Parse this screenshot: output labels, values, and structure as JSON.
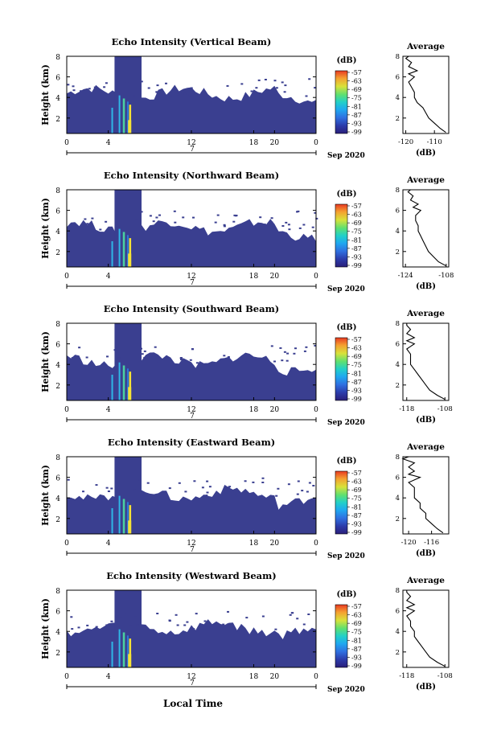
{
  "figure": {
    "xlabel": "Local Time",
    "date_label": "Sep 2020",
    "ylabel": "Height (km)",
    "colorbar_unit": "(dB)",
    "colorbar_ticks": [
      "-57",
      "-63",
      "-69",
      "-75",
      "-81",
      "-87",
      "-93",
      "-99"
    ],
    "avg_title": "Average",
    "avg_xlabel": "(dB)",
    "x_ticks": [
      "0",
      "4",
      "12",
      "18",
      "20",
      "0"
    ],
    "date_tick": "7",
    "y_ticks": [
      "2",
      "4",
      "6",
      "8"
    ]
  },
  "chart_data": [
    {
      "type": "heatmap",
      "title": "Echo Intensity (Vertical Beam)",
      "x_range": [
        0,
        24
      ],
      "y_range": [
        0.5,
        8
      ],
      "color_range_db": [
        -99,
        -57
      ],
      "avg_profile": {
        "x_ticks": [
          "-120",
          "-110"
        ],
        "xlim": [
          -121,
          -105
        ],
        "height_km": [
          0.6,
          1.0,
          1.5,
          2.0,
          2.5,
          3.0,
          3.5,
          4.0,
          4.5,
          5.0,
          5.5,
          6.0,
          6.3,
          6.6,
          7.0,
          7.4,
          7.8,
          8.0
        ],
        "db": [
          -106,
          -108,
          -110,
          -112,
          -113,
          -114,
          -116,
          -117,
          -117,
          -118,
          -119,
          -117,
          -119,
          -116,
          -119,
          -118,
          -120,
          -119
        ]
      }
    },
    {
      "type": "heatmap",
      "title": "Echo Intensity (Northward Beam)",
      "x_range": [
        0,
        24
      ],
      "y_range": [
        0.5,
        8
      ],
      "color_range_db": [
        -99,
        -57
      ],
      "avg_profile": {
        "x_ticks": [
          "-124",
          "-108"
        ],
        "xlim": [
          -125,
          -107
        ],
        "height_km": [
          0.6,
          1.0,
          1.5,
          2.0,
          2.5,
          3.0,
          3.5,
          4.0,
          4.5,
          5.0,
          5.5,
          6.0,
          6.3,
          6.6,
          7.0,
          7.4,
          7.8,
          8.0
        ],
        "db": [
          -108,
          -111,
          -113,
          -115,
          -116,
          -117,
          -118,
          -119,
          -119,
          -120,
          -120,
          -118,
          -121,
          -119,
          -122,
          -121,
          -123,
          -122
        ]
      }
    },
    {
      "type": "heatmap",
      "title": "Echo Intensity (Southward Beam)",
      "x_range": [
        0,
        24
      ],
      "y_range": [
        0.5,
        8
      ],
      "color_range_db": [
        -99,
        -57
      ],
      "avg_profile": {
        "x_ticks": [
          "-118",
          "-108"
        ],
        "xlim": [
          -119,
          -107
        ],
        "height_km": [
          0.6,
          1.0,
          1.5,
          2.0,
          2.5,
          3.0,
          3.5,
          4.0,
          4.5,
          5.0,
          5.5,
          6.0,
          6.3,
          6.6,
          7.0,
          7.4,
          7.8,
          8.0
        ],
        "db": [
          -108,
          -110,
          -112,
          -113,
          -114,
          -115,
          -116,
          -117,
          -117,
          -117,
          -118,
          -116,
          -118,
          -116,
          -118,
          -117,
          -118,
          -118
        ]
      }
    },
    {
      "type": "heatmap",
      "title": "Echo Intensity (Eastward Beam)",
      "x_range": [
        0,
        24
      ],
      "y_range": [
        0.5,
        8
      ],
      "color_range_db": [
        -99,
        -57
      ],
      "avg_profile": {
        "x_ticks": [
          "-120",
          "-116"
        ],
        "xlim": [
          -121,
          -113
        ],
        "height_km": [
          0.6,
          1.0,
          1.5,
          2.0,
          2.5,
          3.0,
          3.5,
          4.0,
          4.5,
          5.0,
          5.5,
          6.0,
          6.3,
          6.6,
          7.0,
          7.4,
          7.8,
          8.0
        ],
        "db": [
          -114,
          -115,
          -116,
          -117,
          -117,
          -118,
          -118,
          -119,
          -119,
          -119,
          -120,
          -118,
          -120,
          -119,
          -120,
          -119,
          -121,
          -120
        ]
      }
    },
    {
      "type": "heatmap",
      "title": "Echo Intensity (Westward Beam)",
      "x_range": [
        0,
        24
      ],
      "y_range": [
        0.5,
        8
      ],
      "color_range_db": [
        -99,
        -57
      ],
      "avg_profile": {
        "x_ticks": [
          "-118",
          "-108"
        ],
        "xlim": [
          -119,
          -107
        ],
        "height_km": [
          0.6,
          1.0,
          1.5,
          2.0,
          2.5,
          3.0,
          3.5,
          4.0,
          4.5,
          5.0,
          5.5,
          6.0,
          6.3,
          6.6,
          7.0,
          7.4,
          7.8,
          8.0
        ],
        "db": [
          -108,
          -110,
          -112,
          -113,
          -114,
          -115,
          -116,
          -116,
          -117,
          -117,
          -118,
          -116,
          -118,
          -116,
          -118,
          -117,
          -118,
          -118
        ]
      }
    }
  ]
}
